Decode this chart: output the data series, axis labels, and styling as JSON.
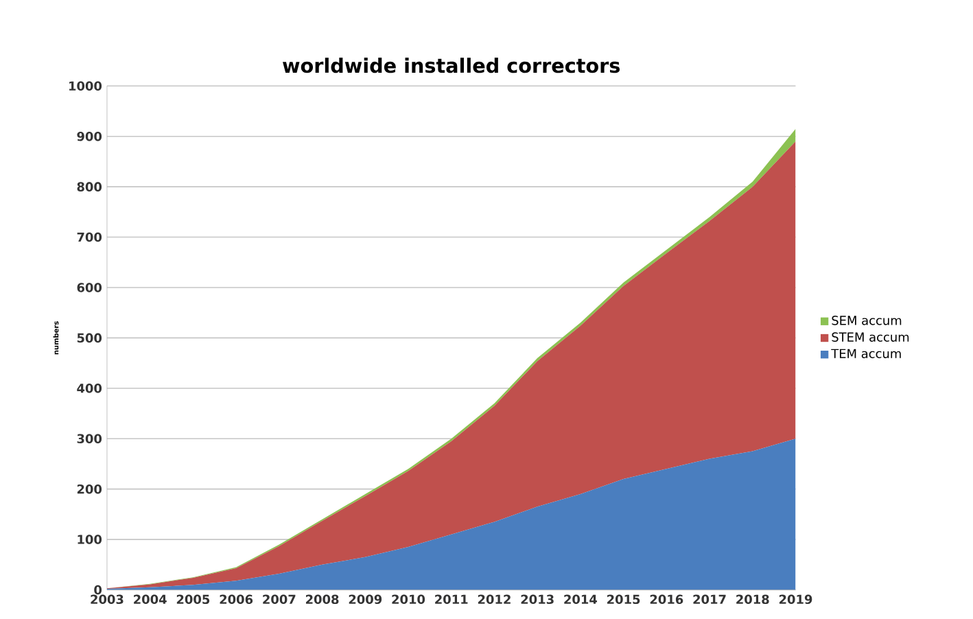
{
  "chart_data": {
    "type": "area",
    "title": "worldwide installed correctors",
    "ylabel": "numbers",
    "categories": [
      "2003",
      "2004",
      "2005",
      "2006",
      "2007",
      "2008",
      "2009",
      "2010",
      "2011",
      "2012",
      "2013",
      "2014",
      "2015",
      "2016",
      "2017",
      "2018",
      "2019"
    ],
    "stacked": true,
    "series": [
      {
        "name": "TEM accum",
        "color": "#4a7ebf",
        "values": [
          2,
          5,
          10,
          18,
          32,
          50,
          65,
          85,
          110,
          135,
          165,
          190,
          220,
          240,
          260,
          275,
          300
        ]
      },
      {
        "name": "STEM accum",
        "color": "#c0504d",
        "values": [
          1,
          6,
          14,
          25,
          55,
          87,
          121,
          151,
          185,
          230,
          289,
          334,
          383,
          428,
          472,
          525,
          590
        ]
      },
      {
        "name": "SEM accum",
        "color": "#8cc152",
        "values": [
          0,
          1,
          1,
          2,
          3,
          3,
          4,
          4,
          5,
          5,
          6,
          6,
          7,
          7,
          8,
          10,
          25
        ]
      }
    ],
    "ylim": [
      0,
      1000
    ],
    "yticks": [
      0,
      100,
      200,
      300,
      400,
      500,
      600,
      700,
      800,
      900,
      1000
    ],
    "grid": "y",
    "legend": "right"
  }
}
